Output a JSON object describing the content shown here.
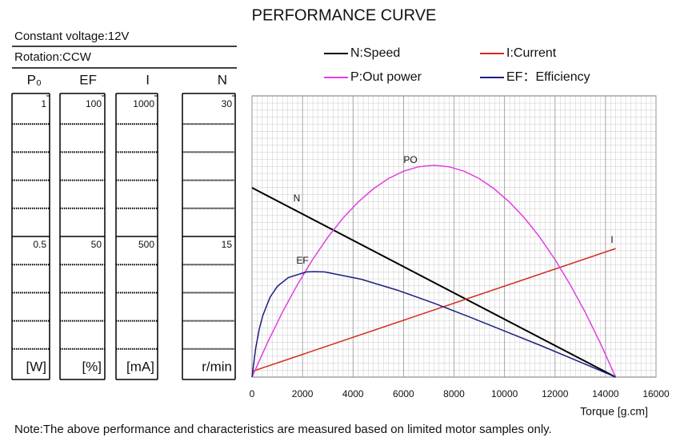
{
  "chart_data": {
    "type": "line",
    "title": "PERFORMANCE CURVE",
    "conditions": [
      "Constant voltage:12V",
      "Rotation:CCW"
    ],
    "y_axes": [
      {
        "name": "P₀",
        "unit": "[W]",
        "ylim": [
          0,
          1
        ],
        "yticks": [
          0.5,
          1
        ]
      },
      {
        "name": "EF",
        "unit": "[%]",
        "ylim": [
          0,
          100
        ],
        "yticks": [
          50,
          100
        ]
      },
      {
        "name": "I",
        "unit": "[mA]",
        "ylim": [
          0,
          1000
        ],
        "yticks": [
          500,
          1000
        ]
      },
      {
        "name": "N",
        "unit": "r/min",
        "ylim": [
          0,
          30
        ],
        "yticks": [
          15,
          30
        ]
      }
    ],
    "xlabel": "Torque [g.cm]",
    "xlim": [
      0,
      16000
    ],
    "xticks": [
      0,
      2000,
      4000,
      6000,
      8000,
      10000,
      12000,
      14000,
      16000
    ],
    "grid": true,
    "series": [
      {
        "name": "N:Speed",
        "label": "N",
        "color": "#000000",
        "axis": 3,
        "x": [
          0,
          14400
        ],
        "values": [
          20.2,
          0
        ]
      },
      {
        "name": "I:Current",
        "label": "I",
        "color": "#d42a1e",
        "axis": 2,
        "x": [
          0,
          14400
        ],
        "values": [
          20,
          457
        ]
      },
      {
        "name": "P:Out power",
        "label": "PO",
        "color": "#e23ee2",
        "axis": 0,
        "x": [
          0,
          600,
          1200,
          1800,
          2400,
          3000,
          3600,
          4200,
          4800,
          5400,
          6000,
          6600,
          7200,
          7800,
          8400,
          9000,
          9600,
          10200,
          10800,
          11400,
          12000,
          12600,
          13200,
          13800,
          14400
        ],
        "values": [
          0,
          0.12,
          0.23,
          0.329,
          0.418,
          0.497,
          0.565,
          0.622,
          0.669,
          0.706,
          0.732,
          0.748,
          0.753,
          0.748,
          0.732,
          0.706,
          0.669,
          0.622,
          0.565,
          0.497,
          0.418,
          0.329,
          0.23,
          0.12,
          0
        ]
      },
      {
        "name": "EF：Efficiency",
        "label": "EF",
        "color": "#1c1f80",
        "axis": 1,
        "x": [
          0,
          144,
          288,
          432,
          720,
          1008,
          1440,
          2160,
          2448,
          2880,
          4320,
          5760,
          7200,
          8640,
          10080,
          11520,
          12960,
          14400
        ],
        "values": [
          0,
          10.2,
          17.1,
          22,
          28.5,
          32.3,
          35.4,
          37.4,
          37.5,
          37.4,
          34.8,
          30.9,
          26.3,
          21.3,
          16.1,
          10.9,
          5.5,
          0
        ]
      }
    ],
    "note": "Note:The above performance and characteristics are measured based on limited motor samples only."
  }
}
